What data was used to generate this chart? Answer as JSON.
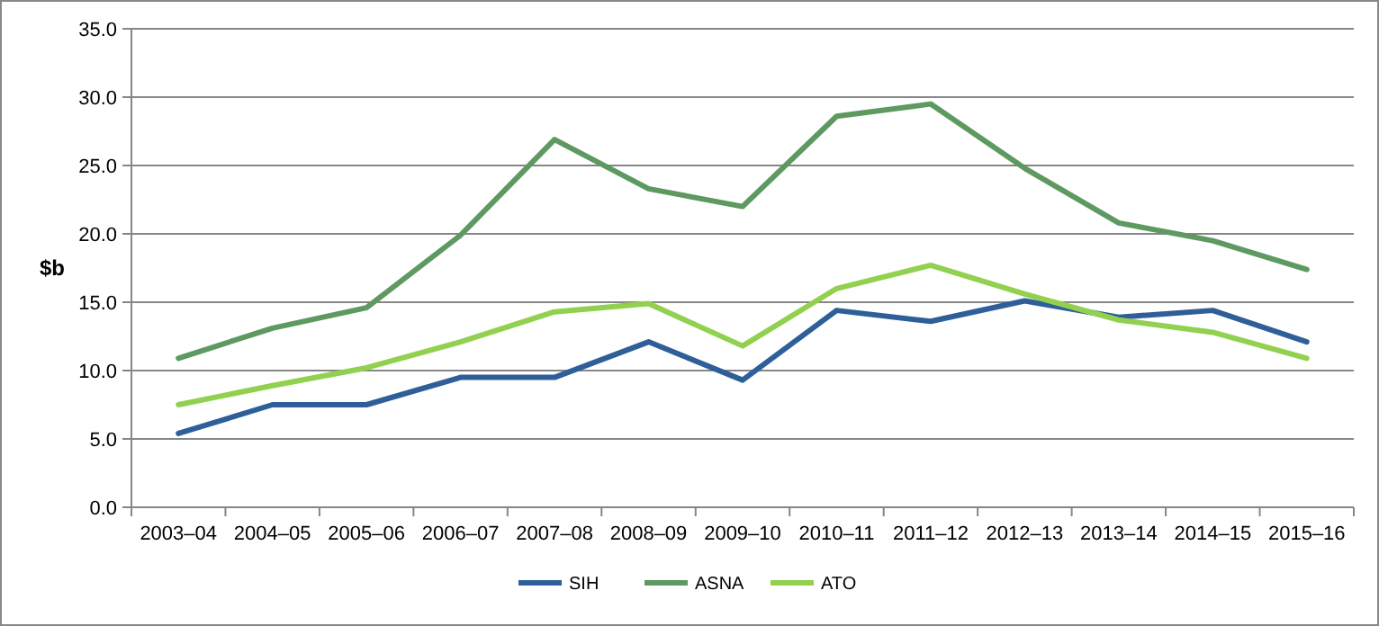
{
  "chart_data": {
    "type": "line",
    "ylabel": "$b",
    "categories": [
      "2003–04",
      "2004–05",
      "2005–06",
      "2006–07",
      "2007–08",
      "2008–09",
      "2009–10",
      "2010–11",
      "2011–12",
      "2012–13",
      "2013–14",
      "2014–15",
      "2015–16"
    ],
    "series": [
      {
        "name": "SIH",
        "color": "#2e5f99",
        "values": [
          5.4,
          7.5,
          7.5,
          9.5,
          9.5,
          12.1,
          9.3,
          14.4,
          13.6,
          15.1,
          13.9,
          14.4,
          12.1
        ]
      },
      {
        "name": "ASNA",
        "color": "#5d9960",
        "values": [
          10.9,
          13.1,
          14.6,
          19.9,
          26.9,
          23.3,
          22.0,
          28.6,
          29.5,
          24.8,
          20.8,
          19.5,
          17.4
        ]
      },
      {
        "name": "ATO",
        "color": "#92d050",
        "values": [
          7.5,
          8.9,
          10.2,
          12.1,
          14.3,
          14.9,
          11.8,
          16.0,
          17.7,
          15.6,
          13.7,
          12.8,
          10.9
        ]
      }
    ],
    "ylim": [
      0,
      35
    ],
    "yticks": [
      {
        "value": 0,
        "label": "0.0"
      },
      {
        "value": 5,
        "label": "5.0"
      },
      {
        "value": 10,
        "label": "10.0"
      },
      {
        "value": 15,
        "label": "15.0"
      },
      {
        "value": 20,
        "label": "20.0"
      },
      {
        "value": 25,
        "label": "25.0"
      },
      {
        "value": 30,
        "label": "30.0"
      },
      {
        "value": 35,
        "label": "35.0"
      }
    ],
    "grid": "y",
    "legend": "bottom",
    "marker": "none",
    "line_style": "solid"
  }
}
